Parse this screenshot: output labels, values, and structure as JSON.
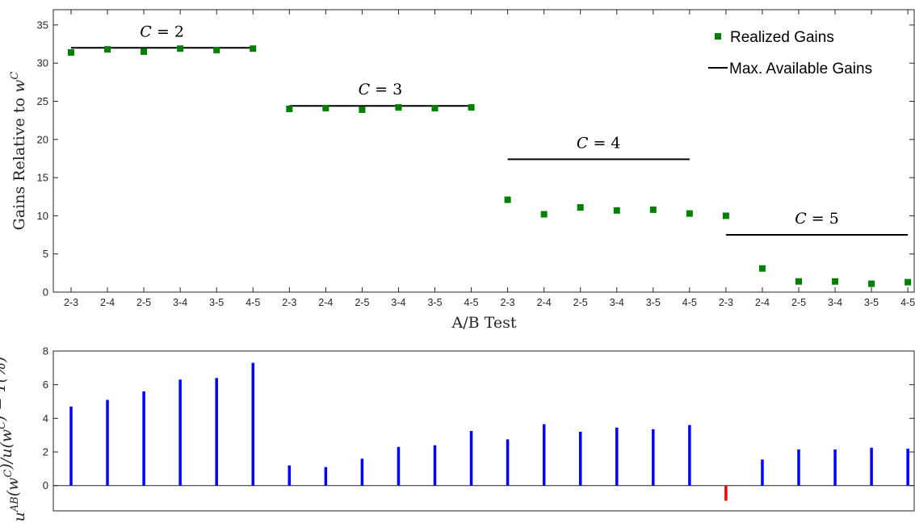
{
  "chart_data": [
    {
      "type": "scatter",
      "xlabel": "A/B Test",
      "ylabel": "Gains Relative to w^C",
      "ylim": [
        0,
        37
      ],
      "yticks": [
        0,
        5,
        10,
        15,
        20,
        25,
        30,
        35
      ],
      "categories": [
        "2-3",
        "2-4",
        "2-5",
        "3-4",
        "3-5",
        "4-5",
        "2-3",
        "2-4",
        "2-5",
        "3-4",
        "3-5",
        "4-5",
        "2-3",
        "2-4",
        "2-5",
        "3-4",
        "3-5",
        "4-5",
        "2-3",
        "2-4",
        "2-5",
        "3-4",
        "3-5",
        "4-5"
      ],
      "legend": {
        "placement": "top-right",
        "entries": [
          "Realized Gains",
          "Max. Available Gains"
        ]
      },
      "series": [
        {
          "name": "Realized Gains",
          "color": "#008000",
          "marker": "square",
          "values": [
            31.4,
            31.8,
            31.5,
            31.9,
            31.7,
            31.9,
            24.0,
            24.1,
            23.9,
            24.2,
            24.1,
            24.2,
            12.1,
            10.2,
            11.1,
            10.7,
            10.8,
            10.3,
            10.0,
            3.1,
            1.4,
            1.4,
            1.1,
            1.3
          ]
        },
        {
          "name": "Max. Available Gains",
          "color": "#000000",
          "marker": "line",
          "segments": [
            {
              "label": "C = 2",
              "from": 0,
              "to": 5,
              "value": 32.0
            },
            {
              "label": "C = 3",
              "from": 6,
              "to": 11,
              "value": 24.4
            },
            {
              "label": "C = 4",
              "from": 12,
              "to": 17,
              "value": 17.4
            },
            {
              "label": "C = 5",
              "from": 18,
              "to": 23,
              "value": 7.5
            }
          ]
        }
      ]
    },
    {
      "type": "bar",
      "ylabel": "u^AB(w^C)/u(w^C) − 1(%)",
      "ylim": [
        -1.5,
        8
      ],
      "yticks": [
        0,
        2,
        4,
        6,
        8
      ],
      "positive_color": "#0000ff",
      "negative_color": "#ff0000",
      "values": [
        4.7,
        5.1,
        5.6,
        6.3,
        6.4,
        7.3,
        1.2,
        1.1,
        1.6,
        2.3,
        2.4,
        3.25,
        2.75,
        3.65,
        3.2,
        3.45,
        3.35,
        3.6,
        -0.9,
        1.55,
        2.15,
        2.15,
        2.25,
        2.2
      ]
    }
  ]
}
